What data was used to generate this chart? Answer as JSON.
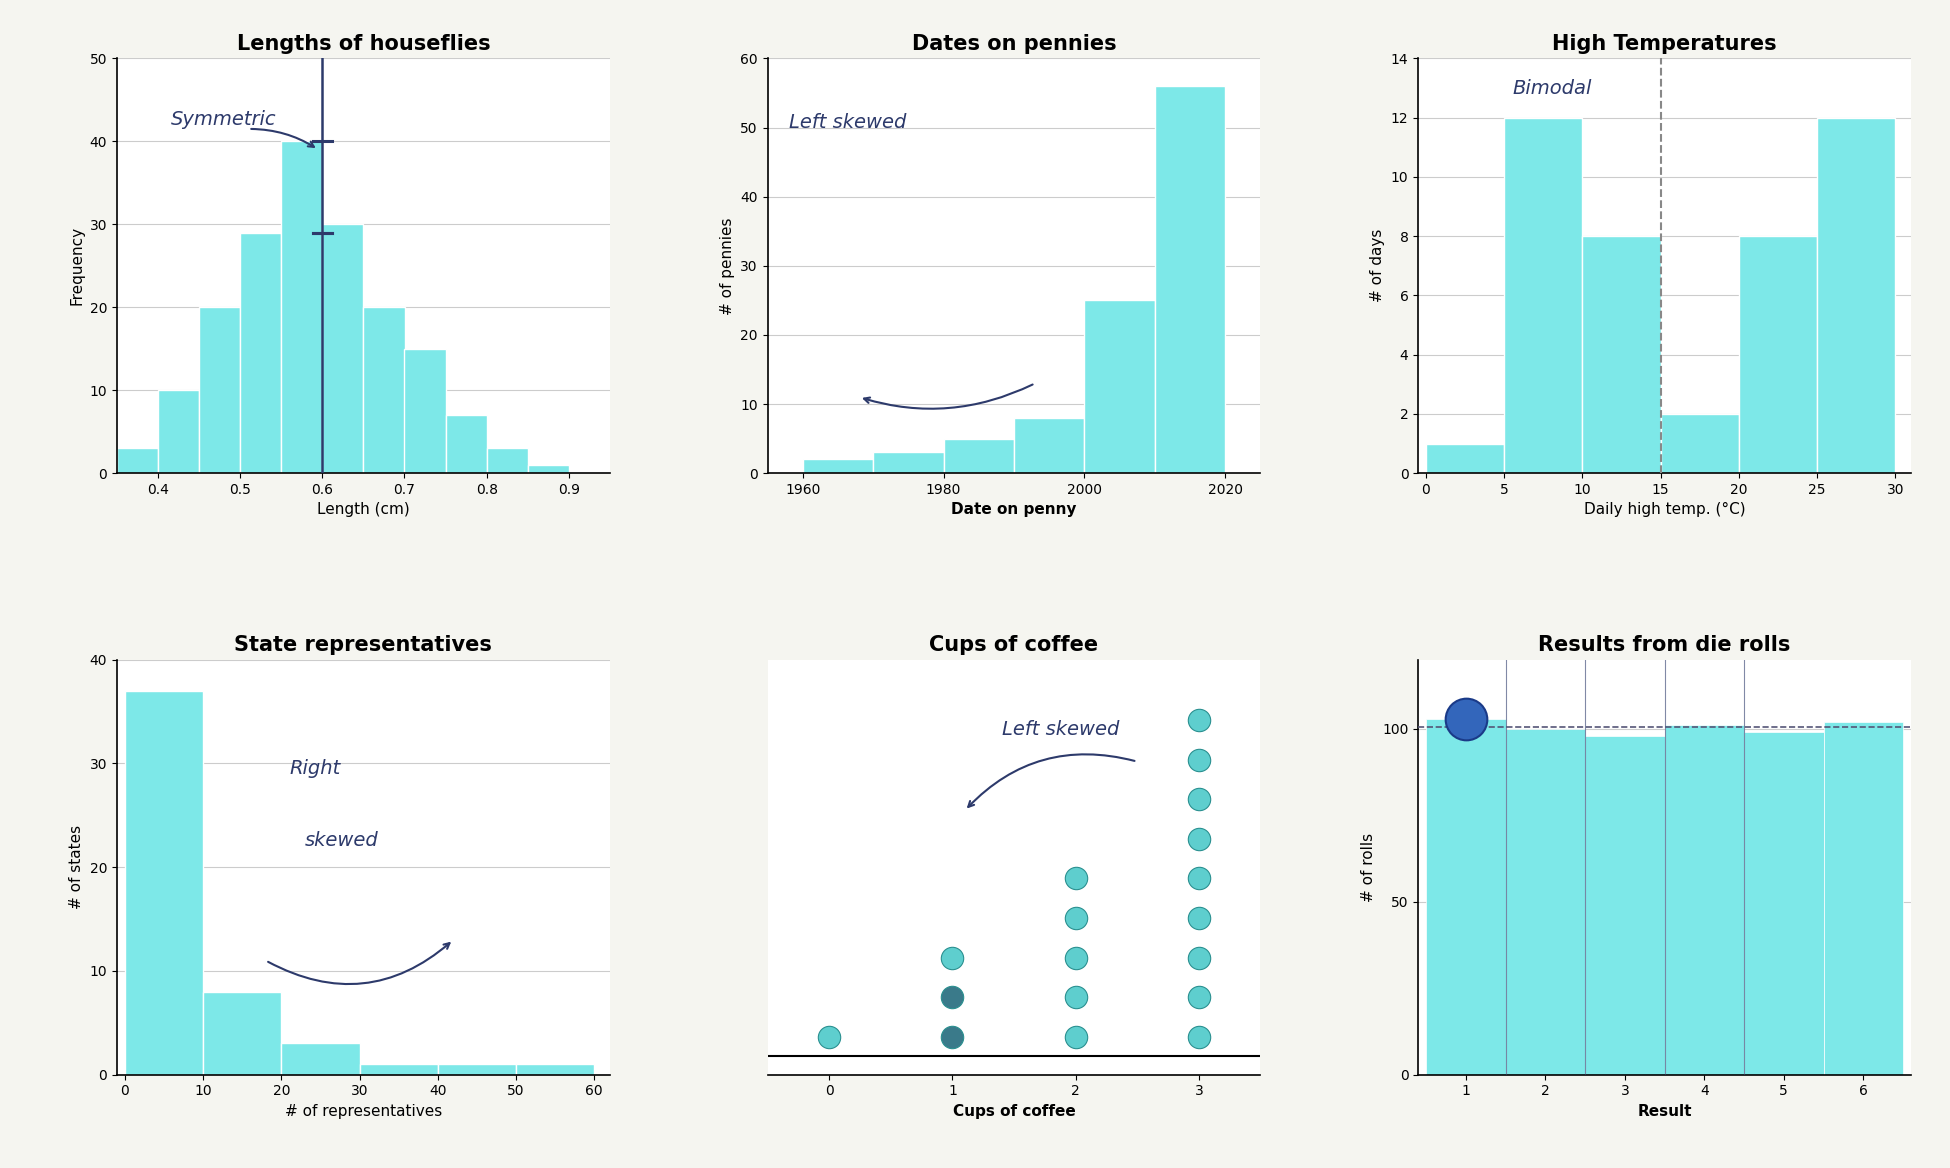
{
  "bg_color": "#f5f5f0",
  "plot_bg": "#ffffff",
  "bar_color": "#7de8e8",
  "bar_edgecolor": "#ffffff",
  "ink_color": "#2d3a6b",
  "houseflies": {
    "title": "Lengths of houseflies",
    "xlabel": "Length (cm)",
    "ylabel": "Frequency",
    "xlim": [
      0.35,
      0.95
    ],
    "ylim": [
      0,
      50
    ],
    "xticks": [
      0.4,
      0.5,
      0.6,
      0.7,
      0.8,
      0.9
    ],
    "yticks": [
      0,
      10,
      20,
      30,
      40,
      50
    ],
    "bin_edges": [
      0.35,
      0.4,
      0.45,
      0.5,
      0.55,
      0.6,
      0.65,
      0.7,
      0.75,
      0.8,
      0.85,
      0.9
    ],
    "values": [
      3,
      10,
      20,
      29,
      40,
      30,
      20,
      15,
      7,
      3,
      1
    ],
    "annotation": "Symmetric",
    "mean_x": 0.6
  },
  "pennies": {
    "title": "Dates on pennies",
    "xlabel": "Date on penny",
    "ylabel": "# of pennies",
    "xlim": [
      1955,
      2025
    ],
    "ylim": [
      0,
      60
    ],
    "xticks": [
      1960,
      1980,
      2000,
      2020
    ],
    "yticks": [
      0,
      10,
      20,
      30,
      40,
      50,
      60
    ],
    "bin_edges": [
      1960,
      1970,
      1980,
      1990,
      2000,
      2010,
      2020
    ],
    "values": [
      2,
      3,
      5,
      8,
      25,
      56
    ],
    "annotation": "Left skewed"
  },
  "hightemp": {
    "title": "High Temperatures",
    "xlabel": "Daily high temp. (°C)",
    "ylabel": "# of days",
    "xlim": [
      -0.5,
      31
    ],
    "ylim": [
      0,
      14
    ],
    "xticks": [
      0,
      5,
      10,
      15,
      20,
      25,
      30
    ],
    "yticks": [
      0,
      2,
      4,
      6,
      8,
      10,
      12,
      14
    ],
    "bin_edges": [
      0,
      5,
      10,
      15,
      20,
      25,
      30
    ],
    "values": [
      1,
      12,
      8,
      2,
      8,
      12
    ],
    "annotation": "Bimodal",
    "dashed_line_x": 15
  },
  "statereps": {
    "title": "State representatives",
    "xlabel": "# of representatives",
    "ylabel": "# of states",
    "xlim": [
      -1,
      62
    ],
    "ylim": [
      0,
      40
    ],
    "xticks": [
      0,
      10,
      20,
      30,
      40,
      50,
      60
    ],
    "yticks": [
      0,
      10,
      20,
      30,
      40
    ],
    "bin_edges": [
      0,
      10,
      20,
      30,
      40,
      50,
      60
    ],
    "values": [
      37,
      8,
      3,
      1,
      1,
      1
    ],
    "annotation1": "Right",
    "annotation2": "skewed"
  },
  "coffee": {
    "title": "Cups of coffee",
    "xlabel": "Cups of coffee",
    "xlim": [
      -0.5,
      3.5
    ],
    "ylim": [
      -0.5,
      10.5
    ],
    "xticks": [
      0,
      1,
      2,
      3
    ],
    "dot_data": {
      "0": 1,
      "1": 3,
      "2": 5,
      "3": 9
    },
    "annotation": "Left skewed"
  },
  "dierolls": {
    "title": "Results from die rolls",
    "xlabel": "Result",
    "ylabel": "# of rolls",
    "xlim": [
      0.4,
      6.6
    ],
    "ylim": [
      0,
      120
    ],
    "xticks": [
      1,
      2,
      3,
      4,
      5,
      6
    ],
    "yticks": [
      0,
      50,
      100
    ],
    "bin_edges": [
      0.5,
      1.5,
      2.5,
      3.5,
      4.5,
      5.5,
      6.5
    ],
    "values": [
      103,
      100,
      98,
      101,
      99,
      102
    ],
    "dashed_y": 100.5,
    "big_dot_x": 1.0,
    "big_dot_y": 103
  }
}
